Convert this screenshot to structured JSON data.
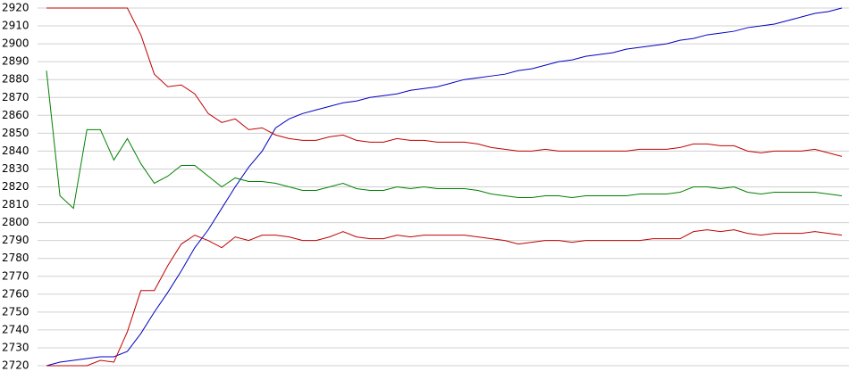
{
  "chart_data": {
    "type": "line",
    "grid": true,
    "ylim": [
      2720,
      2920
    ],
    "yticks": [
      2720,
      2730,
      2740,
      2750,
      2760,
      2770,
      2780,
      2790,
      2800,
      2810,
      2820,
      2830,
      2840,
      2850,
      2860,
      2870,
      2880,
      2890,
      2900,
      2910,
      2920
    ],
    "series": [
      {
        "color": "#0000c0",
        "values": [
          2720,
          2722,
          2723,
          2724,
          2725,
          2725,
          2728,
          2738,
          2750,
          2761,
          2773,
          2786,
          2796,
          2808,
          2820,
          2831,
          2840,
          2853,
          2858,
          2861,
          2863,
          2865,
          2867,
          2868,
          2870,
          2871,
          2872,
          2874,
          2875,
          2876,
          2878,
          2880,
          2881,
          2882,
          2883,
          2885,
          2886,
          2888,
          2890,
          2891,
          2893,
          2894,
          2895,
          2897,
          2898,
          2899,
          2900,
          2902,
          2903,
          2905,
          2906,
          2907,
          2909,
          2910,
          2911,
          2913,
          2915,
          2917,
          2918,
          2920
        ]
      },
      {
        "color": "#c00000",
        "values": [
          2920,
          2920,
          2920,
          2920,
          2920,
          2920,
          2920,
          2905,
          2883,
          2876,
          2877,
          2872,
          2861,
          2856,
          2858,
          2852,
          2853,
          2849,
          2847,
          2846,
          2846,
          2848,
          2849,
          2846,
          2845,
          2845,
          2847,
          2846,
          2846,
          2845,
          2845,
          2845,
          2844,
          2842,
          2841,
          2840,
          2840,
          2841,
          2840,
          2840,
          2840,
          2840,
          2840,
          2840,
          2841,
          2841,
          2841,
          2842,
          2844,
          2844,
          2843,
          2843,
          2840,
          2839,
          2840,
          2840,
          2840,
          2841,
          2839,
          2837
        ]
      },
      {
        "color": "#008000",
        "values": [
          2885,
          2815,
          2808,
          2852,
          2852,
          2835,
          2847,
          2833,
          2822,
          2826,
          2832,
          2832,
          2826,
          2820,
          2825,
          2823,
          2823,
          2822,
          2820,
          2818,
          2818,
          2820,
          2822,
          2819,
          2818,
          2818,
          2820,
          2819,
          2820,
          2819,
          2819,
          2819,
          2818,
          2816,
          2815,
          2814,
          2814,
          2815,
          2815,
          2814,
          2815,
          2815,
          2815,
          2815,
          2816,
          2816,
          2816,
          2817,
          2820,
          2820,
          2819,
          2820,
          2817,
          2816,
          2817,
          2817,
          2817,
          2817,
          2816,
          2815
        ]
      },
      {
        "color": "#c00000",
        "values": [
          2720,
          2720,
          2720,
          2720,
          2723,
          2722,
          2739,
          2762,
          2762,
          2776,
          2788,
          2793,
          2790,
          2786,
          2792,
          2790,
          2793,
          2793,
          2792,
          2790,
          2790,
          2792,
          2795,
          2792,
          2791,
          2791,
          2793,
          2792,
          2793,
          2793,
          2793,
          2793,
          2792,
          2791,
          2790,
          2788,
          2789,
          2790,
          2790,
          2789,
          2790,
          2790,
          2790,
          2790,
          2790,
          2791,
          2791,
          2791,
          2795,
          2796,
          2795,
          2796,
          2794,
          2793,
          2794,
          2794,
          2794,
          2795,
          2794,
          2793
        ]
      }
    ]
  }
}
